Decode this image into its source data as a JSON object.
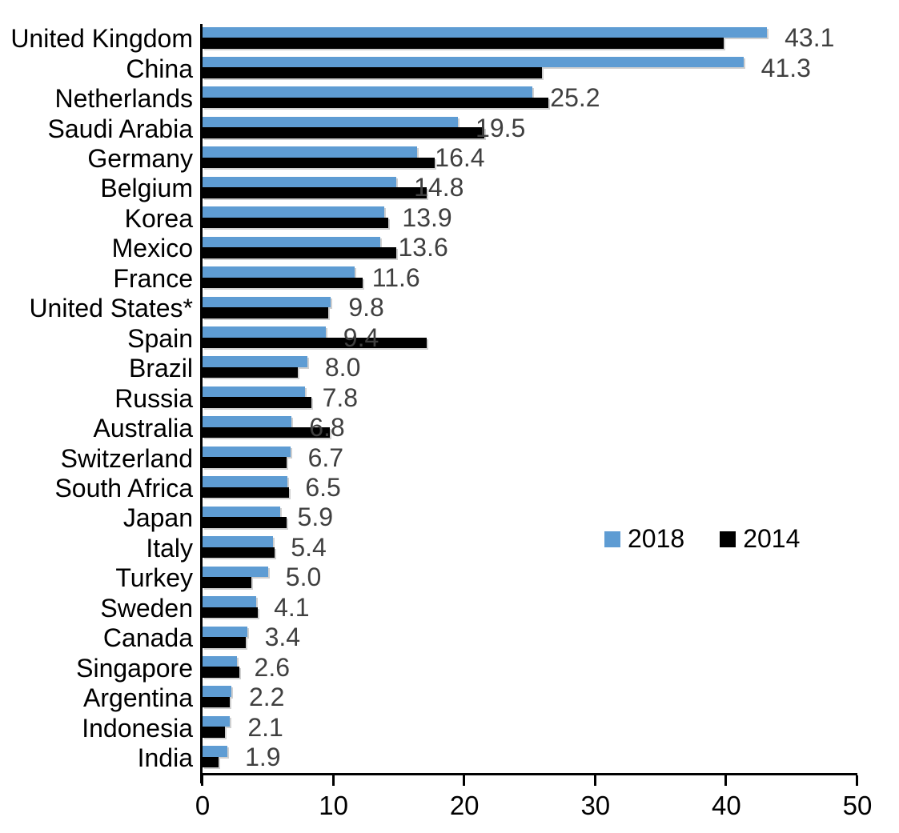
{
  "chart_data": {
    "type": "bar",
    "orientation": "horizontal",
    "title": "",
    "xlabel": "",
    "ylabel": "",
    "xlim": [
      0,
      50
    ],
    "x_ticks": [
      0,
      10,
      20,
      30,
      40,
      50
    ],
    "grid": false,
    "legend_position": "middle-right",
    "categories": [
      "United Kingdom",
      "China",
      "Netherlands",
      "Saudi Arabia",
      "Germany",
      "Belgium",
      "Korea",
      "Mexico",
      "France",
      "United States*",
      "Spain",
      "Brazil",
      "Russia",
      "Australia",
      "Switzerland",
      "South Africa",
      "Japan",
      "Italy",
      "Turkey",
      "Sweden",
      "Canada",
      "Singapore",
      "Argentina",
      "Indonesia",
      "India"
    ],
    "series": [
      {
        "name": "2018",
        "color": "#5E9CD3",
        "values": [
          43.1,
          41.3,
          25.2,
          19.5,
          16.4,
          14.8,
          13.9,
          13.6,
          11.6,
          9.8,
          9.4,
          8.0,
          7.8,
          6.8,
          6.7,
          6.5,
          5.9,
          5.4,
          5.0,
          4.1,
          3.4,
          2.6,
          2.2,
          2.1,
          1.9
        ],
        "data_labels": [
          "43.1",
          "41.3",
          "25.2",
          "19.5",
          "16.4",
          "14.8",
          "13.9",
          "13.6",
          "11.6",
          "9.8",
          "9.4",
          "8.0",
          "7.8",
          "6.8",
          "6.7",
          "6.5",
          "5.9",
          "5.4",
          "5.0",
          "4.1",
          "3.4",
          "2.6",
          "2.2",
          "2.1",
          "1.9"
        ]
      },
      {
        "name": "2014",
        "color": "#000000",
        "values": [
          39.8,
          25.9,
          26.4,
          21.5,
          17.7,
          17.1,
          14.2,
          14.8,
          12.2,
          9.6,
          17.1,
          7.3,
          8.3,
          9.7,
          6.4,
          6.6,
          6.4,
          5.5,
          3.7,
          4.2,
          3.3,
          2.8,
          2.1,
          1.7,
          1.2
        ]
      }
    ],
    "legend": [
      {
        "label": "2018",
        "color": "#5E9CD3"
      },
      {
        "label": "2014",
        "color": "#000000"
      }
    ],
    "colors": {
      "axis": "#000000",
      "data_label": "#404040",
      "category_label": "#000000"
    }
  }
}
